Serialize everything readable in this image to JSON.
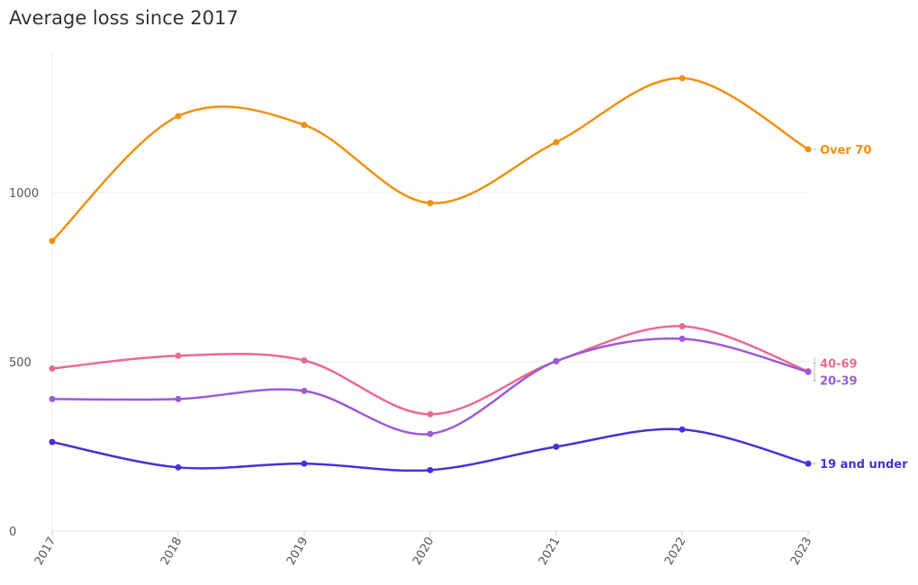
{
  "chart_data": {
    "type": "line",
    "title": "Average loss since 2017",
    "xlabel": "",
    "ylabel": "",
    "x": [
      "2017",
      "2018",
      "2019",
      "2020",
      "2021",
      "2022",
      "2023"
    ],
    "ylim": [
      0,
      1400
    ],
    "yticks": [
      0,
      500,
      1000
    ],
    "grid": "horizontal",
    "legend": "direct labels at line ends (right)",
    "series": [
      {
        "name": "Over 70",
        "color": "#f0900f",
        "values": [
          857,
          1226,
          1200,
          969,
          1149,
          1338,
          1128
        ]
      },
      {
        "name": "40-69",
        "color": "#ec6a8f",
        "values": [
          480,
          518,
          504,
          345,
          502,
          605,
          472
        ]
      },
      {
        "name": "20-39",
        "color": "#9b5ad8",
        "values": [
          390,
          390,
          414,
          287,
          502,
          568,
          470
        ]
      },
      {
        "name": "19 and under",
        "color": "#4b2fd6",
        "values": [
          263,
          188,
          199,
          180,
          249,
          300,
          199
        ]
      }
    ]
  }
}
